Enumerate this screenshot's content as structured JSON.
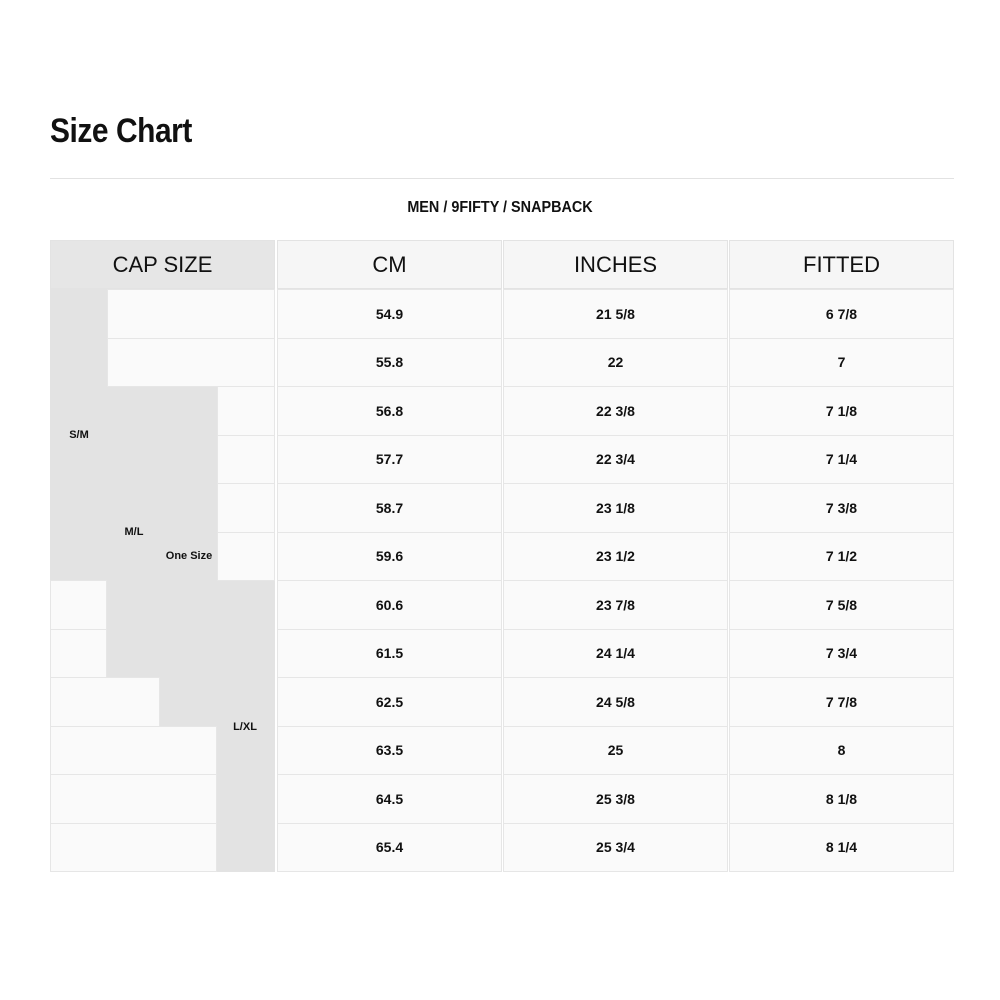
{
  "title": "Size Chart",
  "subtitle": "MEN / 9FIFTY / SNAPBACK",
  "headers": [
    "CAP SIZE",
    "CM",
    "INCHES",
    "FITTED"
  ],
  "cap_sizes": [
    "S/M",
    "M/L",
    "One Size",
    "L/XL"
  ],
  "rows": [
    [
      "54.9",
      "21 5/8",
      "6 7/8"
    ],
    [
      "55.8",
      "22",
      "7"
    ],
    [
      "56.8",
      "22 3/8",
      "7 1/8"
    ],
    [
      "57.7",
      "22 3/4",
      "7 1/4"
    ],
    [
      "58.7",
      "23 1/8",
      "7 3/8"
    ],
    [
      "59.6",
      "23 1/2",
      "7 1/2"
    ],
    [
      "60.6",
      "23 7/8",
      "7 5/8"
    ],
    [
      "61.5",
      "24 1/4",
      "7 3/4"
    ],
    [
      "62.5",
      "24 5/8",
      "7 7/8"
    ],
    [
      "63.5",
      "25",
      "8"
    ],
    [
      "64.5",
      "25 3/8",
      "8 1/8"
    ],
    [
      "65.4",
      "25 3/4",
      "8 1/4"
    ]
  ]
}
